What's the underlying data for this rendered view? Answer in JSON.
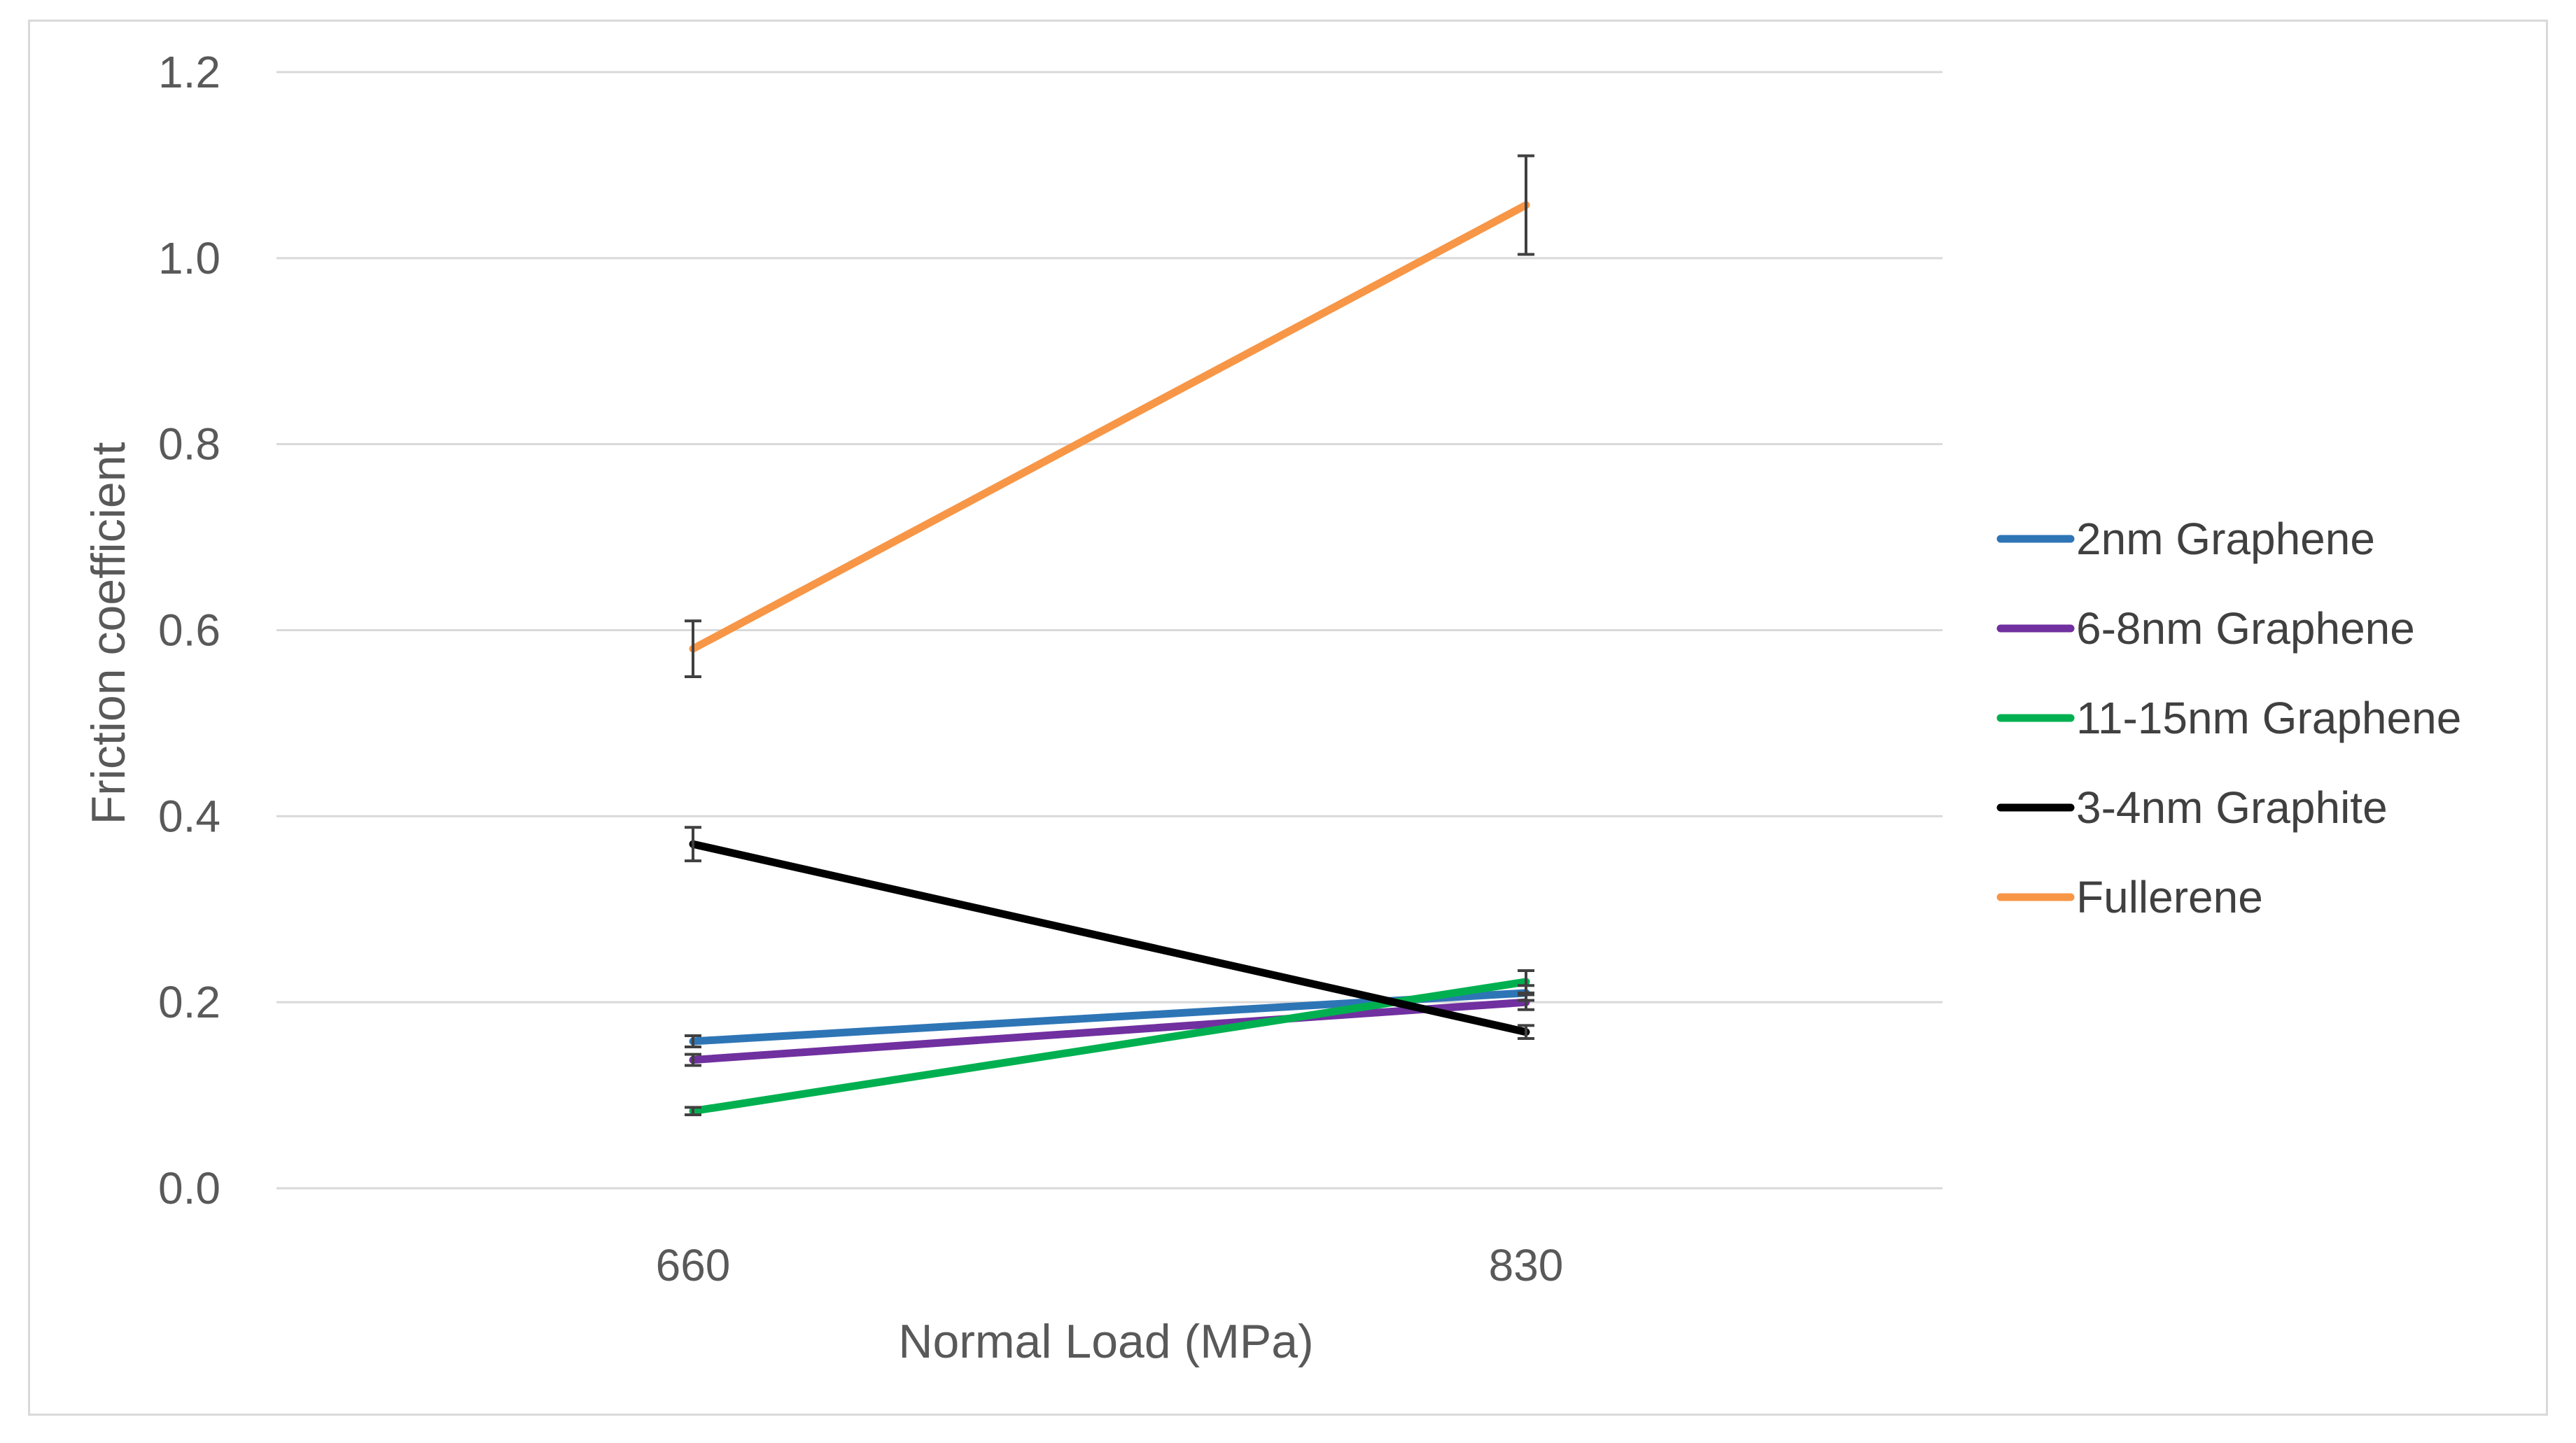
{
  "chart_data": {
    "type": "line",
    "title": "",
    "xlabel": "Normal Load (MPa)",
    "ylabel": "Friction coefficient",
    "categories": [
      "660",
      "830"
    ],
    "ylim": [
      0,
      1.2
    ],
    "yticks": [
      "0.0",
      "0.2",
      "0.4",
      "0.6",
      "0.8",
      "1.0",
      "1.2"
    ],
    "grid": true,
    "legend_position": "right",
    "series": [
      {
        "name": "2nm Graphene",
        "color": "#2E75B6",
        "values": [
          0.158,
          0.21
        ],
        "errors": [
          0.006,
          0.008
        ]
      },
      {
        "name": "6-8nm Graphene",
        "color": "#7030A0",
        "values": [
          0.138,
          0.2
        ],
        "errors": [
          0.006,
          0.008
        ]
      },
      {
        "name": "11-15nm Graphene",
        "color": "#00B050",
        "values": [
          0.083,
          0.222
        ],
        "errors": [
          0.004,
          0.012
        ]
      },
      {
        "name": "3-4nm Graphite",
        "color": "#000000",
        "values": [
          0.37,
          0.168
        ],
        "errors": [
          0.018,
          0.007
        ]
      },
      {
        "name": "Fullerene",
        "color": "#F79646",
        "values": [
          0.58,
          1.057
        ],
        "errors": [
          0.03,
          0.053
        ]
      }
    ]
  }
}
